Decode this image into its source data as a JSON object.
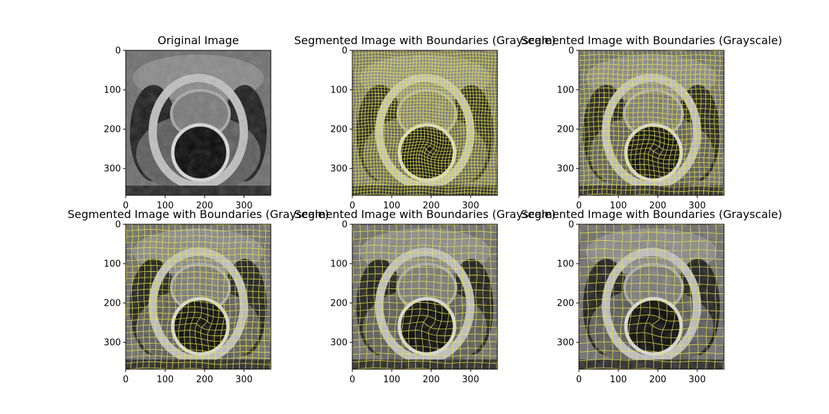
{
  "figure": {
    "colors": {
      "background": "#ffffff",
      "boundary": "#e8e84a",
      "axis": "#000000",
      "tissue_dark": "#1e1e1e",
      "tissue_mid": "#6e6e6e",
      "tissue_light": "#bdbdbd"
    }
  },
  "chart_data": [
    {
      "type": "image",
      "title": "Original Image",
      "overlay": "none",
      "colormap": "gray",
      "xlim": [
        0,
        368
      ],
      "ylim": [
        368,
        0
      ],
      "x_ticks": [
        0,
        100,
        200,
        300
      ],
      "y_ticks": [
        0,
        100,
        200,
        300
      ],
      "x_tick_labels": [
        "0",
        "100",
        "200",
        "300"
      ],
      "y_tick_labels": [
        "0",
        "100",
        "200",
        "300"
      ],
      "segment_grid": 0
    },
    {
      "type": "image",
      "title": "Segmented Image with Boundaries (Grayscale)",
      "overlay": "segment boundaries",
      "colormap": "gray",
      "xlim": [
        0,
        368
      ],
      "ylim": [
        368,
        0
      ],
      "x_ticks": [
        0,
        100,
        200,
        300
      ],
      "y_ticks": [
        0,
        100,
        200,
        300
      ],
      "x_tick_labels": [
        "0",
        "100",
        "200",
        "300"
      ],
      "y_tick_labels": [
        "0",
        "100",
        "200",
        "300"
      ],
      "segment_grid": 46
    },
    {
      "type": "image",
      "title": "Segmented Image with Boundaries (Grayscale)",
      "overlay": "segment boundaries",
      "colormap": "gray",
      "xlim": [
        0,
        368
      ],
      "ylim": [
        368,
        0
      ],
      "x_ticks": [
        0,
        100,
        200,
        300
      ],
      "y_ticks": [
        0,
        100,
        200,
        300
      ],
      "x_tick_labels": [
        "0",
        "100",
        "200",
        "300"
      ],
      "y_tick_labels": [
        "0",
        "100",
        "200",
        "300"
      ],
      "segment_grid": 30
    },
    {
      "type": "image",
      "title": "Segmented Image with Boundaries (Grayscale)",
      "overlay": "segment boundaries",
      "colormap": "gray",
      "xlim": [
        0,
        368
      ],
      "ylim": [
        368,
        0
      ],
      "x_ticks": [
        0,
        100,
        200,
        300
      ],
      "y_ticks": [
        0,
        100,
        200,
        300
      ],
      "x_tick_labels": [
        "0",
        "100",
        "200",
        "300"
      ],
      "y_tick_labels": [
        "0",
        "100",
        "200",
        "300"
      ],
      "segment_grid": 24
    },
    {
      "type": "image",
      "title": "Segmented Image with Boundaries (Grayscale)",
      "overlay": "segment boundaries",
      "colormap": "gray",
      "xlim": [
        0,
        368
      ],
      "ylim": [
        368,
        0
      ],
      "x_ticks": [
        0,
        100,
        200,
        300
      ],
      "y_ticks": [
        0,
        100,
        200,
        300
      ],
      "x_tick_labels": [
        "0",
        "100",
        "200",
        "300"
      ],
      "y_tick_labels": [
        "0",
        "100",
        "200",
        "300"
      ],
      "segment_grid": 20
    },
    {
      "type": "image",
      "title": "Segmented Image with Boundaries (Grayscale)",
      "overlay": "segment boundaries",
      "colormap": "gray",
      "xlim": [
        0,
        368
      ],
      "ylim": [
        368,
        0
      ],
      "x_ticks": [
        0,
        100,
        200,
        300
      ],
      "y_ticks": [
        0,
        100,
        200,
        300
      ],
      "x_tick_labels": [
        "0",
        "100",
        "200",
        "300"
      ],
      "y_tick_labels": [
        "0",
        "100",
        "200",
        "300"
      ],
      "segment_grid": 17
    }
  ]
}
